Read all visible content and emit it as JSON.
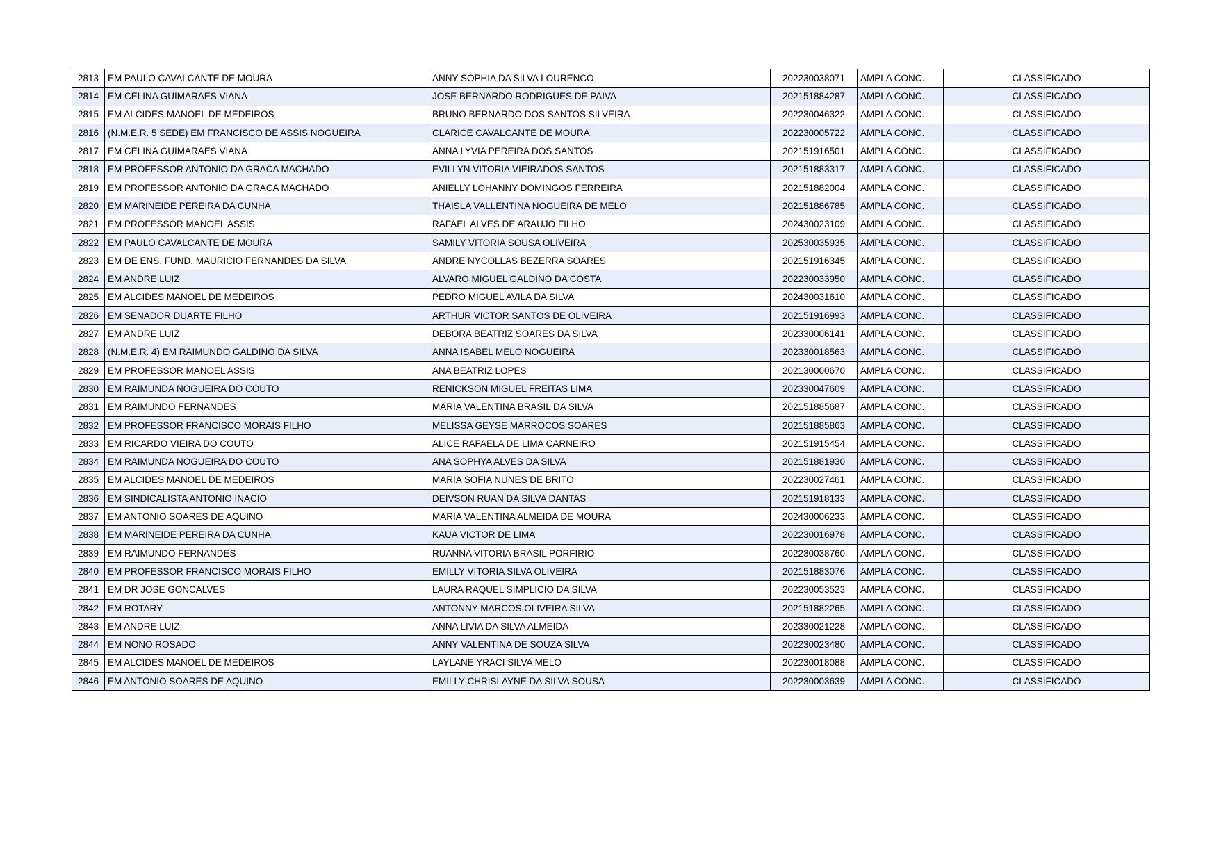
{
  "colors": {
    "row_alternate_background": "#e8eef9",
    "table_border": "#000000",
    "text": "#000000",
    "page_background": "#ffffff"
  },
  "table": {
    "columns": [
      {
        "key": "rank"
      },
      {
        "key": "school"
      },
      {
        "key": "candidate"
      },
      {
        "key": "enrollment"
      },
      {
        "key": "category"
      },
      {
        "key": "status"
      }
    ],
    "rows": [
      {
        "rank": "2813",
        "school": "EM PAULO CAVALCANTE DE MOURA",
        "candidate": "ANNY SOPHIA DA SILVA LOURENCO",
        "enrollment": "202230038071",
        "category": "AMPLA CONC.",
        "status": "CLASSIFICADO"
      },
      {
        "rank": "2814",
        "school": "EM CELINA GUIMARAES VIANA",
        "candidate": "JOSE BERNARDO RODRIGUES DE PAIVA",
        "enrollment": "202151884287",
        "category": "AMPLA CONC.",
        "status": "CLASSIFICADO"
      },
      {
        "rank": "2815",
        "school": "EM ALCIDES MANOEL DE MEDEIROS",
        "candidate": "BRUNO BERNARDO DOS SANTOS SILVEIRA",
        "enrollment": "202230046322",
        "category": "AMPLA CONC.",
        "status": "CLASSIFICADO"
      },
      {
        "rank": "2816",
        "school": "(N.M.E.R. 5 SEDE) EM FRANCISCO DE ASSIS NOGUEIRA",
        "candidate": "CLARICE CAVALCANTE DE MOURA",
        "enrollment": "202230005722",
        "category": "AMPLA CONC.",
        "status": "CLASSIFICADO"
      },
      {
        "rank": "2817",
        "school": "EM CELINA GUIMARAES VIANA",
        "candidate": "ANNA LYVIA PEREIRA DOS SANTOS",
        "enrollment": "202151916501",
        "category": "AMPLA CONC.",
        "status": "CLASSIFICADO"
      },
      {
        "rank": "2818",
        "school": "EM PROFESSOR ANTONIO DA GRACA MACHADO",
        "candidate": "EVILLYN VITORIA VIEIRADOS SANTOS",
        "enrollment": "202151883317",
        "category": "AMPLA CONC.",
        "status": "CLASSIFICADO"
      },
      {
        "rank": "2819",
        "school": "EM PROFESSOR ANTONIO DA GRACA MACHADO",
        "candidate": "ANIELLY LOHANNY DOMINGOS FERREIRA",
        "enrollment": "202151882004",
        "category": "AMPLA CONC.",
        "status": "CLASSIFICADO"
      },
      {
        "rank": "2820",
        "school": "EM MARINEIDE PEREIRA DA CUNHA",
        "candidate": "THAISLA VALLENTINA NOGUEIRA DE MELO",
        "enrollment": "202151886785",
        "category": "AMPLA CONC.",
        "status": "CLASSIFICADO"
      },
      {
        "rank": "2821",
        "school": "EM PROFESSOR MANOEL ASSIS",
        "candidate": "RAFAEL ALVES DE ARAUJO FILHO",
        "enrollment": "202430023109",
        "category": "AMPLA CONC.",
        "status": "CLASSIFICADO"
      },
      {
        "rank": "2822",
        "school": "EM PAULO CAVALCANTE DE MOURA",
        "candidate": "SAMILY VITORIA SOUSA OLIVEIRA",
        "enrollment": "202530035935",
        "category": "AMPLA CONC.",
        "status": "CLASSIFICADO"
      },
      {
        "rank": "2823",
        "school": "EM DE ENS. FUND. MAURICIO FERNANDES DA SILVA",
        "candidate": "ANDRE NYCOLLAS BEZERRA SOARES",
        "enrollment": "202151916345",
        "category": "AMPLA CONC.",
        "status": "CLASSIFICADO"
      },
      {
        "rank": "2824",
        "school": "EM ANDRE LUIZ",
        "candidate": "ALVARO MIGUEL GALDINO DA COSTA",
        "enrollment": "202230033950",
        "category": "AMPLA CONC.",
        "status": "CLASSIFICADO"
      },
      {
        "rank": "2825",
        "school": "EM ALCIDES MANOEL DE MEDEIROS",
        "candidate": "PEDRO MIGUEL AVILA DA SILVA",
        "enrollment": "202430031610",
        "category": "AMPLA CONC.",
        "status": "CLASSIFICADO"
      },
      {
        "rank": "2826",
        "school": "EM SENADOR DUARTE FILHO",
        "candidate": "ARTHUR VICTOR SANTOS DE OLIVEIRA",
        "enrollment": "202151916993",
        "category": "AMPLA CONC.",
        "status": "CLASSIFICADO"
      },
      {
        "rank": "2827",
        "school": "EM ANDRE LUIZ",
        "candidate": "DEBORA BEATRIZ SOARES DA SILVA",
        "enrollment": "202330006141",
        "category": "AMPLA CONC.",
        "status": "CLASSIFICADO"
      },
      {
        "rank": "2828",
        "school": "(N.M.E.R. 4) EM RAIMUNDO GALDINO DA SILVA",
        "candidate": "ANNA ISABEL MELO NOGUEIRA",
        "enrollment": "202330018563",
        "category": "AMPLA CONC.",
        "status": "CLASSIFICADO"
      },
      {
        "rank": "2829",
        "school": "EM PROFESSOR MANOEL ASSIS",
        "candidate": "ANA BEATRIZ LOPES",
        "enrollment": "202130000670",
        "category": "AMPLA CONC.",
        "status": "CLASSIFICADO"
      },
      {
        "rank": "2830",
        "school": "EM RAIMUNDA NOGUEIRA DO COUTO",
        "candidate": "RENICKSON MIGUEL FREITAS LIMA",
        "enrollment": "202330047609",
        "category": "AMPLA CONC.",
        "status": "CLASSIFICADO"
      },
      {
        "rank": "2831",
        "school": "EM RAIMUNDO FERNANDES",
        "candidate": "MARIA VALENTINA BRASIL DA SILVA",
        "enrollment": "202151885687",
        "category": "AMPLA CONC.",
        "status": "CLASSIFICADO"
      },
      {
        "rank": "2832",
        "school": "EM PROFESSOR FRANCISCO MORAIS FILHO",
        "candidate": "MELISSA GEYSE MARROCOS SOARES",
        "enrollment": "202151885863",
        "category": "AMPLA CONC.",
        "status": "CLASSIFICADO"
      },
      {
        "rank": "2833",
        "school": "EM RICARDO VIEIRA DO COUTO",
        "candidate": "ALICE RAFAELA DE LIMA CARNEIRO",
        "enrollment": "202151915454",
        "category": "AMPLA CONC.",
        "status": "CLASSIFICADO"
      },
      {
        "rank": "2834",
        "school": "EM RAIMUNDA NOGUEIRA DO COUTO",
        "candidate": "ANA SOPHYA ALVES DA SILVA",
        "enrollment": "202151881930",
        "category": "AMPLA CONC.",
        "status": "CLASSIFICADO"
      },
      {
        "rank": "2835",
        "school": "EM ALCIDES MANOEL DE MEDEIROS",
        "candidate": "MARIA SOFIA NUNES DE BRITO",
        "enrollment": "202230027461",
        "category": "AMPLA CONC.",
        "status": "CLASSIFICADO"
      },
      {
        "rank": "2836",
        "school": "EM SINDICALISTA ANTONIO INACIO",
        "candidate": "DEIVSON RUAN DA SILVA DANTAS",
        "enrollment": "202151918133",
        "category": "AMPLA CONC.",
        "status": "CLASSIFICADO"
      },
      {
        "rank": "2837",
        "school": "EM ANTONIO SOARES DE AQUINO",
        "candidate": "MARIA VALENTINA ALMEIDA DE MOURA",
        "enrollment": "202430006233",
        "category": "AMPLA CONC.",
        "status": "CLASSIFICADO"
      },
      {
        "rank": "2838",
        "school": "EM MARINEIDE PEREIRA DA CUNHA",
        "candidate": "KAUA VICTOR DE LIMA",
        "enrollment": "202230016978",
        "category": "AMPLA CONC.",
        "status": "CLASSIFICADO"
      },
      {
        "rank": "2839",
        "school": "EM RAIMUNDO FERNANDES",
        "candidate": "RUANNA VITORIA BRASIL PORFIRIO",
        "enrollment": "202230038760",
        "category": "AMPLA CONC.",
        "status": "CLASSIFICADO"
      },
      {
        "rank": "2840",
        "school": "EM PROFESSOR FRANCISCO MORAIS FILHO",
        "candidate": "EMILLY VITORIA SILVA OLIVEIRA",
        "enrollment": "202151883076",
        "category": "AMPLA CONC.",
        "status": "CLASSIFICADO"
      },
      {
        "rank": "2841",
        "school": "EM DR JOSE GONCALVES",
        "candidate": "LAURA RAQUEL SIMPLICIO DA SILVA",
        "enrollment": "202230053523",
        "category": "AMPLA CONC.",
        "status": "CLASSIFICADO"
      },
      {
        "rank": "2842",
        "school": "EM ROTARY",
        "candidate": "ANTONNY MARCOS OLIVEIRA SILVA",
        "enrollment": "202151882265",
        "category": "AMPLA CONC.",
        "status": "CLASSIFICADO"
      },
      {
        "rank": "2843",
        "school": "EM ANDRE LUIZ",
        "candidate": "ANNA LIVIA DA SILVA ALMEIDA",
        "enrollment": "202330021228",
        "category": "AMPLA CONC.",
        "status": "CLASSIFICADO"
      },
      {
        "rank": "2844",
        "school": "EM NONO ROSADO",
        "candidate": "ANNY VALENTINA DE SOUZA SILVA",
        "enrollment": "202230023480",
        "category": "AMPLA CONC.",
        "status": "CLASSIFICADO"
      },
      {
        "rank": "2845",
        "school": "EM ALCIDES MANOEL DE MEDEIROS",
        "candidate": "LAYLANE YRACI SILVA MELO",
        "enrollment": "202230018088",
        "category": "AMPLA CONC.",
        "status": "CLASSIFICADO"
      },
      {
        "rank": "2846",
        "school": "EM ANTONIO SOARES DE AQUINO",
        "candidate": "EMILLY CHRISLAYNE DA SILVA SOUSA",
        "enrollment": "202230003639",
        "category": "AMPLA CONC.",
        "status": "CLASSIFICADO"
      }
    ]
  }
}
